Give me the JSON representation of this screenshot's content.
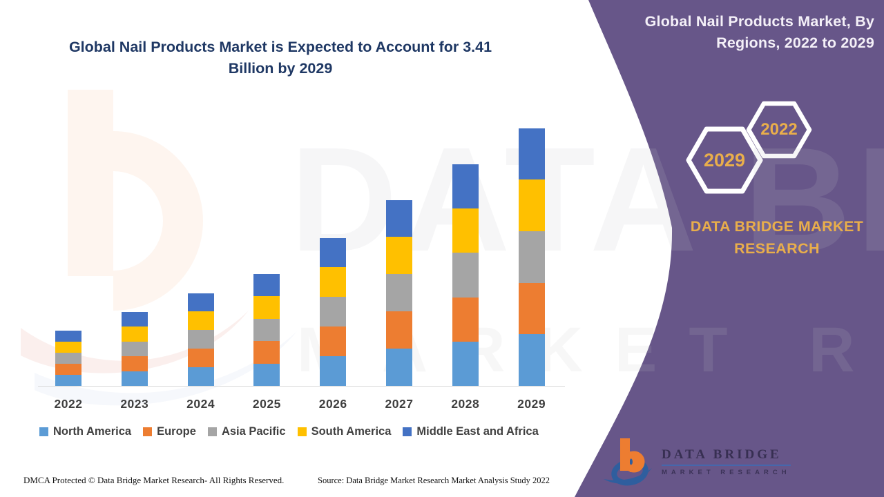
{
  "header": {
    "chart_title": "Global Nail Products Market is Expected to Account for 3.41 Billion by 2029"
  },
  "panel": {
    "title": "Global Nail Products Market, By Regions, 2022 to 2029",
    "hex_large_label": "2029",
    "hex_small_label": "2022",
    "brand_text": "DATA BRIDGE MARKET RESEARCH",
    "bg_color": "#675689",
    "gold_color": "#E9AE4B"
  },
  "watermark": {
    "word1": "DATA BRIDGE",
    "word2": "MARKET RESEARCH"
  },
  "footer": {
    "dmca_text": "DMCA Protected © Data Bridge Market Research- All Rights Reserved.",
    "source_text": "Source: Data Bridge Market Research Market Analysis Study 2022"
  },
  "logo": {
    "name_line": "DATA BRIDGE",
    "sub_line": "MARKET RESEARCH"
  },
  "chart_data": {
    "type": "bar",
    "stacked": true,
    "title": "Global Nail Products Market is Expected to Account for 3.41 Billion by 2029",
    "units": "USD Billion (values estimated from bar heights; 2029 total = 3.41)",
    "categories": [
      "2022",
      "2023",
      "2024",
      "2025",
      "2026",
      "2027",
      "2028",
      "2029"
    ],
    "series": [
      {
        "name": "North America",
        "color": "#5B9BD5",
        "values": [
          0.146,
          0.196,
          0.246,
          0.296,
          0.392,
          0.492,
          0.586,
          0.682
        ]
      },
      {
        "name": "Europe",
        "color": "#ED7D31",
        "values": [
          0.146,
          0.196,
          0.246,
          0.296,
          0.392,
          0.492,
          0.586,
          0.682
        ]
      },
      {
        "name": "Asia Pacific",
        "color": "#A5A5A5",
        "values": [
          0.146,
          0.196,
          0.246,
          0.296,
          0.392,
          0.492,
          0.586,
          0.682
        ]
      },
      {
        "name": "South America",
        "color": "#FFC000",
        "values": [
          0.146,
          0.196,
          0.246,
          0.296,
          0.392,
          0.492,
          0.586,
          0.682
        ]
      },
      {
        "name": "Middle East and Africa",
        "color": "#4472C4",
        "values": [
          0.146,
          0.196,
          0.246,
          0.296,
          0.392,
          0.492,
          0.586,
          0.682
        ]
      }
    ],
    "totals_billion_usd": [
      0.73,
      0.98,
      1.23,
      1.48,
      1.96,
      2.46,
      2.93,
      3.41
    ],
    "xlabel": "",
    "ylabel": "",
    "y_axis_visible": false,
    "gridlines": false,
    "legend_position": "bottom"
  }
}
